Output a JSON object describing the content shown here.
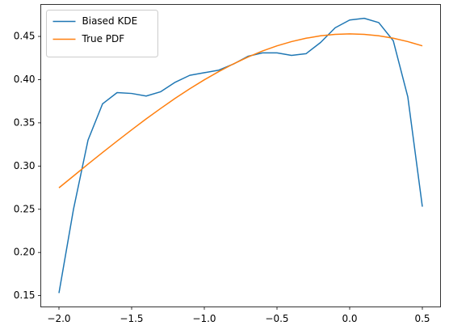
{
  "chart_data": {
    "type": "line",
    "x": [
      -2.0,
      -1.9,
      -1.8,
      -1.7,
      -1.6,
      -1.5,
      -1.4,
      -1.3,
      -1.2,
      -1.1,
      -1.0,
      -0.9,
      -0.8,
      -0.7,
      -0.6,
      -0.5,
      -0.4,
      -0.3,
      -0.2,
      -0.1,
      0.0,
      0.1,
      0.2,
      0.3,
      0.4,
      0.5
    ],
    "series": [
      {
        "name": "Biased KDE",
        "color": "#1f77b4",
        "values": [
          0.153,
          0.25,
          0.33,
          0.372,
          0.385,
          0.384,
          0.381,
          0.386,
          0.397,
          0.405,
          0.408,
          0.411,
          0.418,
          0.427,
          0.431,
          0.431,
          0.428,
          0.43,
          0.443,
          0.46,
          0.469,
          0.471,
          0.466,
          0.445,
          0.38,
          0.253
        ]
      },
      {
        "name": "True PDF",
        "color": "#ff7f0e",
        "values": [
          0.2748,
          0.2885,
          0.3022,
          0.3157,
          0.3289,
          0.3419,
          0.3546,
          0.3667,
          0.3784,
          0.3894,
          0.3998,
          0.4094,
          0.4182,
          0.4261,
          0.4331,
          0.4391,
          0.444,
          0.4479,
          0.4507,
          0.4524,
          0.453,
          0.4524,
          0.4507,
          0.4479,
          0.444,
          0.4391
        ]
      }
    ],
    "xlim": [
      -2.125,
      0.625
    ],
    "ylim": [
      0.137,
      0.487
    ],
    "xticks": [
      {
        "value": -2.0,
        "label": "−2.0"
      },
      {
        "value": -1.5,
        "label": "−1.5"
      },
      {
        "value": -1.0,
        "label": "−1.0"
      },
      {
        "value": -0.5,
        "label": "−0.5"
      },
      {
        "value": 0.0,
        "label": "0.0"
      },
      0.5
    ],
    "yticks": [
      0.15,
      {
        "value": 0.2,
        "label": "0.20"
      },
      0.25,
      {
        "value": 0.3,
        "label": "0.30"
      },
      0.35,
      {
        "value": 0.4,
        "label": "0.40"
      },
      0.45
    ],
    "grid": false,
    "legend": "upper-left"
  }
}
